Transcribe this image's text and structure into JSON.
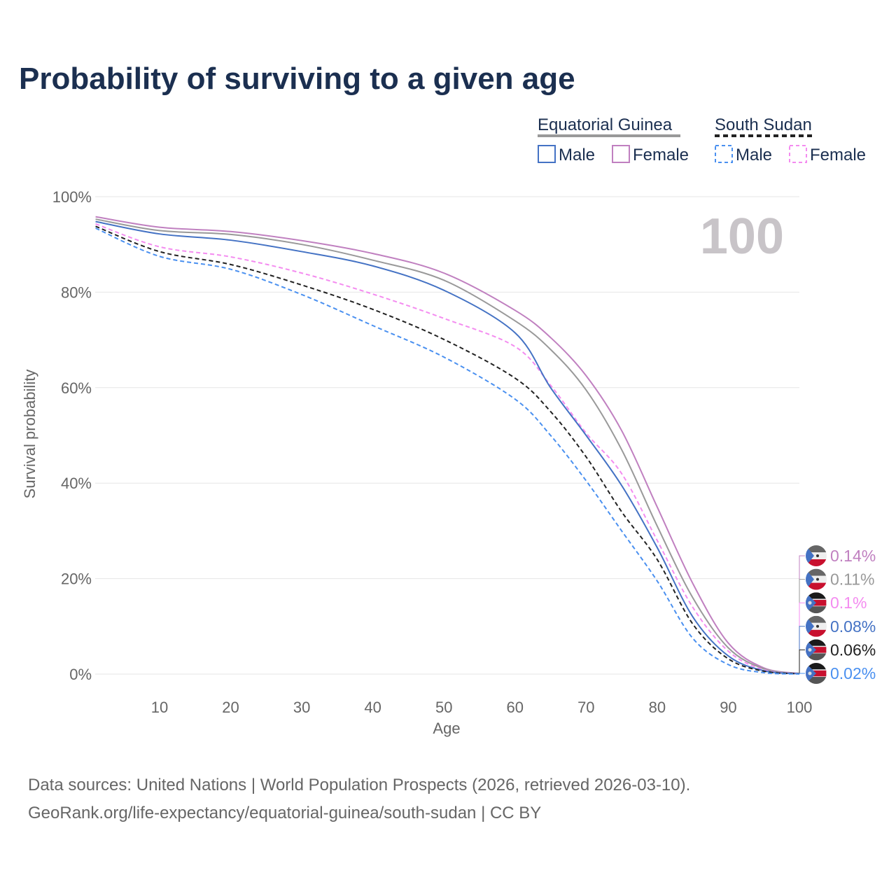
{
  "title": "Probability of surviving to a given age",
  "legend": {
    "groups": [
      {
        "name": "Equatorial Guinea",
        "line_color": "#999999",
        "dashed": false,
        "items": [
          {
            "label": "Male",
            "color": "#4472c4"
          },
          {
            "label": "Female",
            "color": "#c080c0"
          }
        ]
      },
      {
        "name": "South Sudan",
        "line_color": "#222222",
        "dashed": true,
        "items": [
          {
            "label": "Male",
            "color": "#4a90f0"
          },
          {
            "label": "Female",
            "color": "#f48cf0"
          }
        ]
      }
    ]
  },
  "age_marker": "100",
  "chart_data": {
    "type": "line",
    "title": "Probability of surviving to a given age",
    "xlabel": "Age",
    "ylabel": "Survival probability",
    "xlim": [
      1,
      100
    ],
    "ylim": [
      0,
      100
    ],
    "x_ticks": [
      "10",
      "20",
      "30",
      "40",
      "50",
      "60",
      "70",
      "80",
      "90",
      "100"
    ],
    "y_ticks": [
      "0%",
      "20%",
      "40%",
      "60%",
      "80%",
      "100%"
    ],
    "grid": true,
    "x": [
      1,
      10,
      20,
      30,
      40,
      50,
      60,
      65,
      70,
      75,
      80,
      85,
      90,
      95,
      100
    ],
    "series": [
      {
        "name": "Equatorial Guinea Female",
        "color": "#c080c0",
        "dashed": false,
        "flag": "equatorial-guinea",
        "end_label": "0.14%",
        "values": [
          95.8,
          93.6,
          92.7,
          90.8,
          88.1,
          84,
          76.2,
          70.5,
          62.5,
          51,
          35,
          19,
          6.5,
          1.3,
          0.14
        ]
      },
      {
        "name": "Equatorial Guinea Total",
        "color": "#999999",
        "dashed": false,
        "flag": "equatorial-guinea",
        "end_label": "0.11%",
        "values": [
          95.3,
          92.9,
          92.1,
          90,
          86.7,
          82.5,
          74,
          68,
          59.5,
          47,
          31,
          16,
          5.5,
          1.1,
          0.11
        ]
      },
      {
        "name": "South Sudan Female",
        "color": "#f48cf0",
        "dashed": true,
        "flag": "south-sudan",
        "end_label": "0.1%",
        "values": [
          94.3,
          89.5,
          87.4,
          84,
          79.6,
          74.5,
          68.6,
          60.5,
          50.5,
          42,
          28,
          14,
          4.8,
          0.9,
          0.1
        ]
      },
      {
        "name": "Equatorial Guinea Male",
        "color": "#4472c4",
        "dashed": false,
        "flag": "equatorial-guinea",
        "end_label": "0.08%",
        "values": [
          94.8,
          92.2,
          90.9,
          88.5,
          85.5,
          80.4,
          71.5,
          60,
          50,
          39.5,
          26.5,
          12,
          3.8,
          0.7,
          0.08
        ]
      },
      {
        "name": "South Sudan Total",
        "color": "#222222",
        "dashed": true,
        "flag": "south-sudan",
        "end_label": "0.06%",
        "values": [
          93.8,
          88.5,
          85.8,
          81.5,
          76.4,
          70.1,
          62,
          55,
          45.5,
          34,
          24,
          10.5,
          3.2,
          0.6,
          0.06
        ]
      },
      {
        "name": "South Sudan Male",
        "color": "#4a90f0",
        "dashed": true,
        "flag": "south-sudan",
        "end_label": "0.02%",
        "values": [
          93.4,
          87.5,
          84.8,
          79.5,
          73,
          66.4,
          57.6,
          50,
          40.5,
          30,
          19.5,
          7.5,
          2,
          0.3,
          0.02
        ]
      }
    ]
  },
  "footer": {
    "line1": "Data sources: United Nations | World Population Prospects (2026, retrieved 2026-03-10).",
    "line2": "GeoRank.org/life-expectancy/equatorial-guinea/south-sudan | CC BY"
  }
}
